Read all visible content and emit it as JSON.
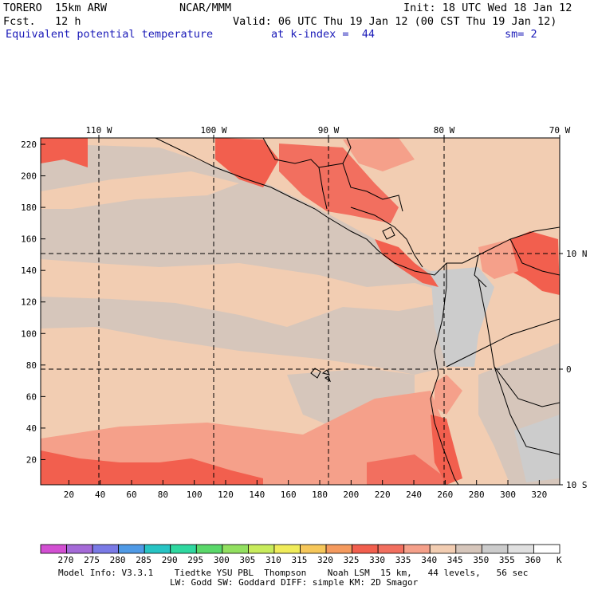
{
  "header": {
    "model": "TORERO  15km ARW",
    "center": "NCAR/MMM",
    "init": "Init: 18 UTC Wed 18 Jan 12",
    "fcst": "Fcst.   12 h",
    "valid": "Valid: 06 UTC Thu 19 Jan 12 (00 CST Thu 19 Jan 12)",
    "field": "Equivalent potential temperature",
    "level": "at k-index =  44",
    "smooth": "sm= 2"
  },
  "map": {
    "top_lon_labels": [
      "110 W",
      "100 W",
      "90 W",
      "80 W",
      "70 W"
    ],
    "right_lat_labels": [
      "10 N",
      "0",
      "10 S"
    ],
    "left_y_ticks": [
      "220",
      "200",
      "180",
      "160",
      "140",
      "120",
      "100",
      "80",
      "60",
      "40",
      "20"
    ],
    "bottom_x_ticks": [
      "20",
      "40",
      "60",
      "80",
      "100",
      "120",
      "140",
      "160",
      "180",
      "200",
      "220",
      "240",
      "260",
      "280",
      "300",
      "320"
    ]
  },
  "legend": {
    "labels": [
      "270",
      "275",
      "280",
      "285",
      "290",
      "295",
      "300",
      "305",
      "310",
      "315",
      "320",
      "325",
      "330",
      "335",
      "340",
      "345",
      "350",
      "355",
      "360"
    ],
    "unit": "K",
    "colors": [
      "#d24fd2",
      "#a56ad8",
      "#7a7ae6",
      "#4f9ae6",
      "#27c4c4",
      "#2fd8a0",
      "#5ad86a",
      "#92e060",
      "#c8ec5c",
      "#f0ec5a",
      "#f6c75a",
      "#f59a5e",
      "#f25f4e",
      "#f26f5f",
      "#f5a08a",
      "#f2cdb2",
      "#d6c6bb",
      "#cccccc",
      "#e0e0e0",
      "#ffffff"
    ]
  },
  "footer": {
    "line1": "Model Info: V3.3.1    Tiedtke YSU PBL  Thompson    Noah LSM  15 km,   44 levels,   56 sec",
    "line2": "LW: Godd SW: Goddard DIFF: simple KM: 2D Smagor"
  }
}
